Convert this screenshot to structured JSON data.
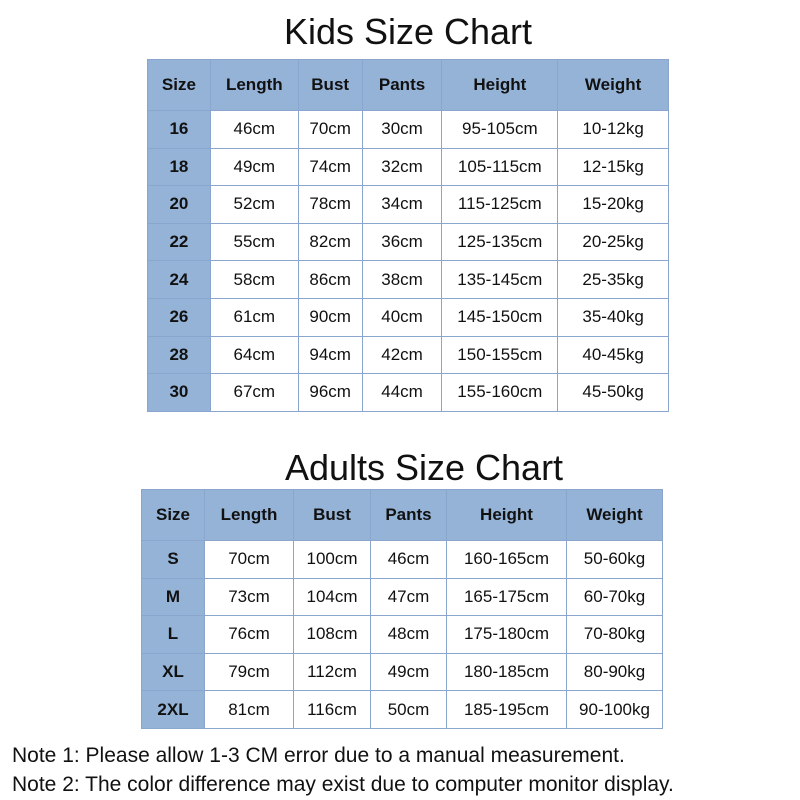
{
  "colors": {
    "header_bg": "#95b3d7",
    "border": "#8aa6cf"
  },
  "kids": {
    "title": "Kids Size Chart",
    "headers": [
      "Size",
      "Length",
      "Bust",
      "Pants",
      "Height",
      "Weight"
    ],
    "rows": [
      [
        "16",
        "46cm",
        "70cm",
        "30cm",
        "95-105cm",
        "10-12kg"
      ],
      [
        "18",
        "49cm",
        "74cm",
        "32cm",
        "105-115cm",
        "12-15kg"
      ],
      [
        "20",
        "52cm",
        "78cm",
        "34cm",
        "115-125cm",
        "15-20kg"
      ],
      [
        "22",
        "55cm",
        "82cm",
        "36cm",
        "125-135cm",
        "20-25kg"
      ],
      [
        "24",
        "58cm",
        "86cm",
        "38cm",
        "135-145cm",
        "25-35kg"
      ],
      [
        "26",
        "61cm",
        "90cm",
        "40cm",
        "145-150cm",
        "35-40kg"
      ],
      [
        "28",
        "64cm",
        "94cm",
        "42cm",
        "150-155cm",
        "40-45kg"
      ],
      [
        "30",
        "67cm",
        "96cm",
        "44cm",
        "155-160cm",
        "45-50kg"
      ]
    ]
  },
  "adults": {
    "title": "Adults Size Chart",
    "headers": [
      "Size",
      "Length",
      "Bust",
      "Pants",
      "Height",
      "Weight"
    ],
    "rows": [
      [
        "S",
        "70cm",
        "100cm",
        "46cm",
        "160-165cm",
        "50-60kg"
      ],
      [
        "M",
        "73cm",
        "104cm",
        "47cm",
        "165-175cm",
        "60-70kg"
      ],
      [
        "L",
        "76cm",
        "108cm",
        "48cm",
        "175-180cm",
        "70-80kg"
      ],
      [
        "XL",
        "79cm",
        "112cm",
        "49cm",
        "180-185cm",
        "80-90kg"
      ],
      [
        "2XL",
        "81cm",
        "116cm",
        "50cm",
        "185-195cm",
        "90-100kg"
      ]
    ]
  },
  "notes": [
    "Note 1: Please allow 1-3 CM error due to a manual measurement.",
    "Note 2: The color difference may exist due to computer monitor display."
  ]
}
